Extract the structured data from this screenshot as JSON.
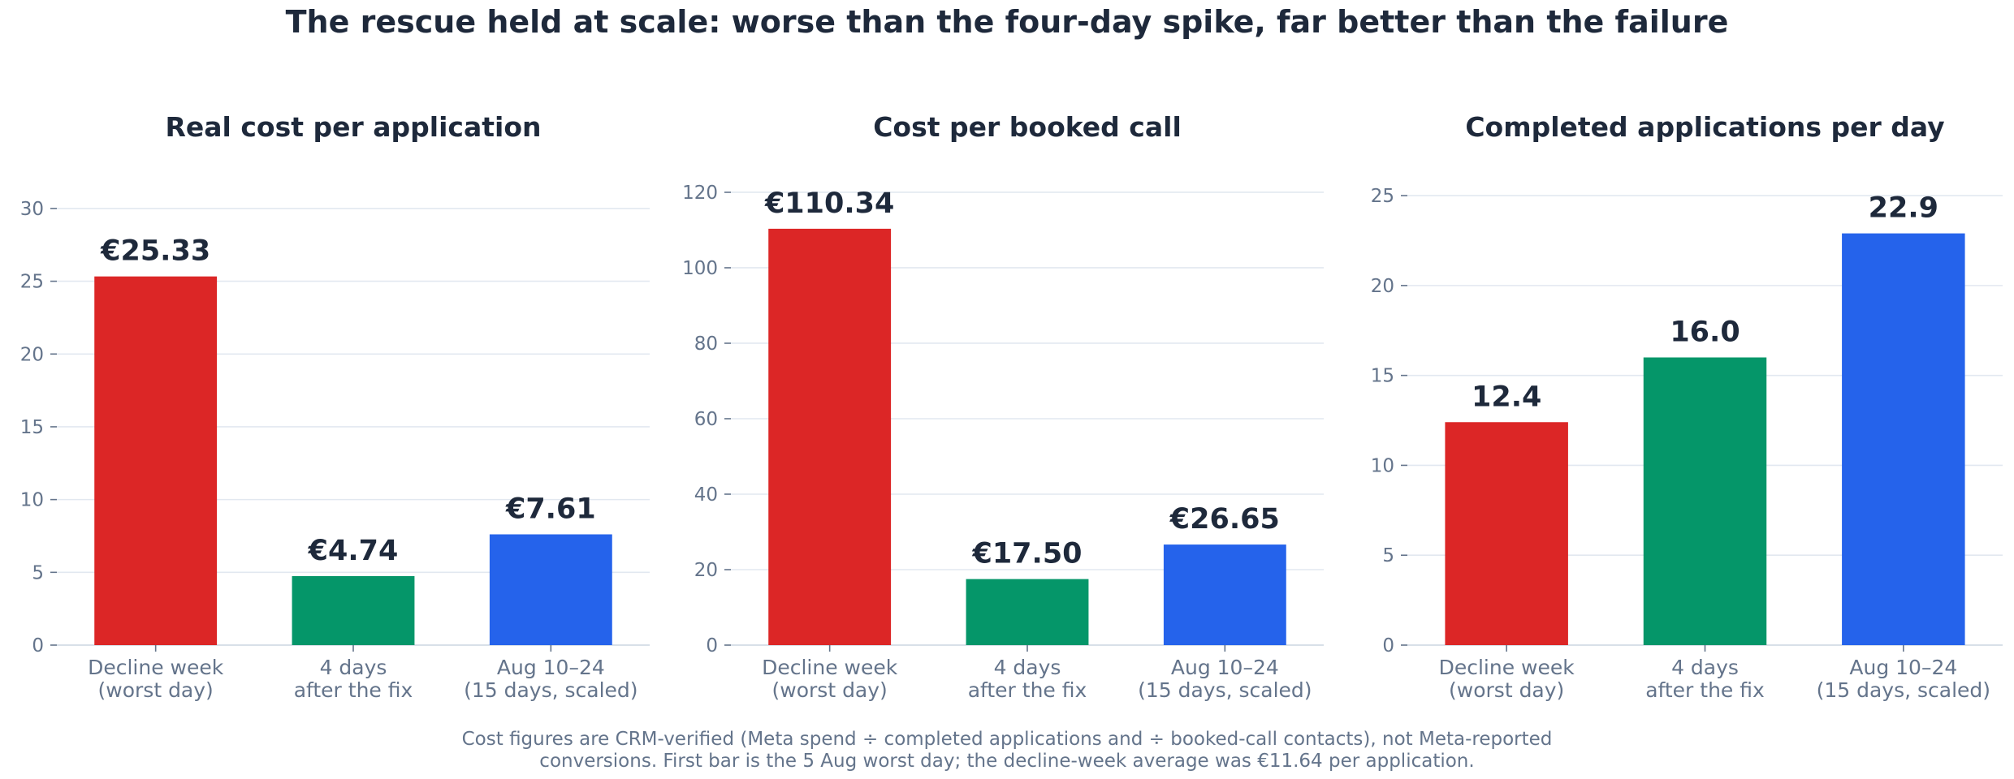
{
  "title": "The rescue held at scale: worse than the four-day spike, far better than the failure",
  "footnote": [
    "Cost figures are CRM-verified (Meta spend ÷ completed applications and ÷ booked-call contacts), not Meta-reported",
    "conversions. First bar is the 5 Aug worst day; the decline-week average was €11.64 per application."
  ],
  "colors": {
    "decline": "#dc2626",
    "fix": "#059669",
    "scaled": "#2563eb"
  },
  "chart_data": [
    {
      "type": "bar",
      "title": "Real cost per application",
      "categories": [
        [
          "Decline week",
          "(worst day)"
        ],
        [
          "4 days",
          "after the fix"
        ],
        [
          "Aug 10–24",
          "(15 days, scaled)"
        ]
      ],
      "values": [
        25.33,
        4.74,
        7.61
      ],
      "value_labels": [
        "€25.33",
        "€4.74",
        "€7.61"
      ],
      "ylim": [
        0,
        31.5
      ],
      "yticks": [
        0,
        5,
        10,
        15,
        20,
        25,
        30
      ],
      "grid": true
    },
    {
      "type": "bar",
      "title": "Cost per booked call",
      "categories": [
        [
          "Decline week",
          "(worst day)"
        ],
        [
          "4 days",
          "after the fix"
        ],
        [
          "Aug 10–24",
          "(15 days, scaled)"
        ]
      ],
      "values": [
        110.34,
        17.5,
        26.65
      ],
      "value_labels": [
        "€110.34",
        "€17.50",
        "€26.65"
      ],
      "ylim": [
        0,
        121.5
      ],
      "yticks": [
        0,
        20,
        40,
        60,
        80,
        100,
        120
      ],
      "grid": true
    },
    {
      "type": "bar",
      "title": "Completed applications per day",
      "categories": [
        [
          "Decline week",
          "(worst day)"
        ],
        [
          "4 days",
          "after the fix"
        ],
        [
          "Aug 10–24",
          "(15 days, scaled)"
        ]
      ],
      "values": [
        12.4,
        16.0,
        22.9
      ],
      "value_labels": [
        "12.4",
        "16.0",
        "22.9"
      ],
      "ylim": [
        0,
        25.5
      ],
      "yticks": [
        0,
        5,
        10,
        15,
        20,
        25
      ],
      "grid": true
    }
  ]
}
